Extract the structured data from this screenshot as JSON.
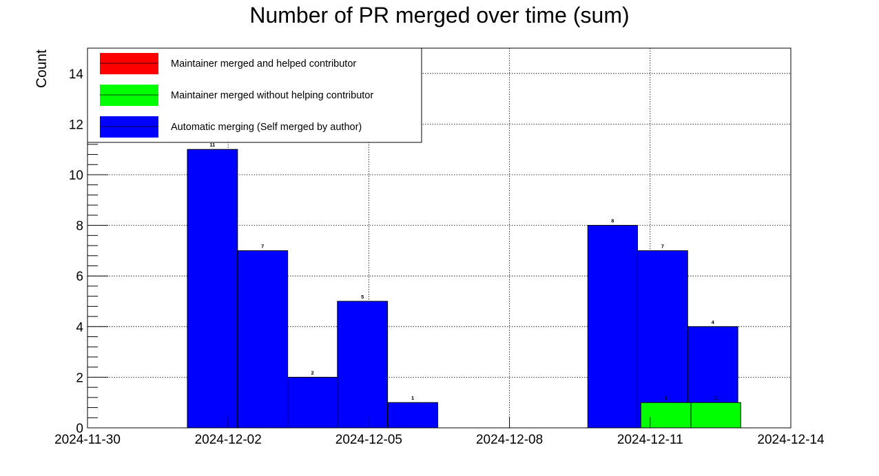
{
  "chart_data": {
    "type": "bar",
    "title": "Number of PR merged over time (sum)",
    "xlabel": "",
    "ylabel": "Count",
    "grid": true,
    "xlim": [
      0,
      14
    ],
    "ylim": [
      0,
      15
    ],
    "x_ticks": [
      {
        "pos": 0,
        "label": "2024-11-30"
      },
      {
        "pos": 3,
        "label": "2024-12-02"
      },
      {
        "pos": 6,
        "label": "2024-12-05"
      },
      {
        "pos": 9,
        "label": "2024-12-08"
      },
      {
        "pos": 12,
        "label": "2024-12-11"
      },
      {
        "pos": 15,
        "label": "2024-12-14"
      }
    ],
    "x_domain": [
      0,
      15
    ],
    "y_ticks": [
      0,
      2,
      4,
      6,
      8,
      10,
      12,
      14
    ],
    "legend_position": "top-left",
    "series": [
      {
        "name": "Maintainer merged and helped contributor",
        "color": "#ff0000",
        "bins": []
      },
      {
        "name": "Maintainer merged without helping contributor",
        "color": "#00ff00",
        "bins": [
          {
            "start": 11.8,
            "end": 12.87,
            "value": 1,
            "label": "1"
          },
          {
            "start": 12.87,
            "end": 13.93,
            "value": 1,
            "label": "1"
          }
        ]
      },
      {
        "name": "Automatic merging (Self merged by author)",
        "color": "#0000ff",
        "bins": [
          {
            "start": 2.13,
            "end": 3.2,
            "value": 11,
            "label": "11"
          },
          {
            "start": 3.2,
            "end": 4.27,
            "value": 7,
            "label": "7"
          },
          {
            "start": 4.27,
            "end": 5.33,
            "value": 2,
            "label": "2"
          },
          {
            "start": 5.33,
            "end": 6.4,
            "value": 5,
            "label": "5"
          },
          {
            "start": 6.4,
            "end": 7.47,
            "value": 1,
            "label": "1"
          },
          {
            "start": 10.67,
            "end": 11.73,
            "value": 8,
            "label": "8"
          },
          {
            "start": 11.73,
            "end": 12.8,
            "value": 7,
            "label": "7"
          },
          {
            "start": 12.8,
            "end": 13.87,
            "value": 4,
            "label": "4"
          }
        ]
      }
    ]
  }
}
